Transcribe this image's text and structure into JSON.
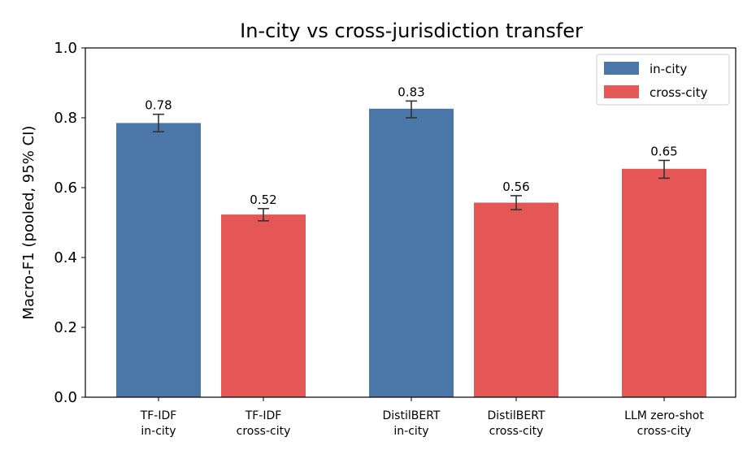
{
  "chart_data": {
    "type": "bar",
    "title": "In-city vs cross-jurisdiction transfer",
    "xlabel": "",
    "ylabel": "Macro-F1 (pooled, 95% CI)",
    "ylim": [
      0,
      1.0
    ],
    "yticks": [
      "0.0",
      "0.2",
      "0.4",
      "0.6",
      "0.8",
      "1.0"
    ],
    "grid": false,
    "legend_position": "top-right",
    "legend": [
      {
        "label": "in-city",
        "color": "#4a77a8"
      },
      {
        "label": "cross-city",
        "color": "#e55757"
      }
    ],
    "bars": [
      {
        "label_lines": [
          "TF-IDF",
          "in-city"
        ],
        "group": "in-city",
        "value": 0.785,
        "ci_low": 0.76,
        "ci_high": 0.81,
        "data_label": "0.78"
      },
      {
        "label_lines": [
          "TF-IDF",
          "cross-city"
        ],
        "group": "cross-city",
        "value": 0.523,
        "ci_low": 0.505,
        "ci_high": 0.54,
        "data_label": "0.52"
      },
      {
        "label_lines": [
          "DistilBERT",
          "in-city"
        ],
        "group": "in-city",
        "value": 0.826,
        "ci_low": 0.8,
        "ci_high": 0.848,
        "data_label": "0.83"
      },
      {
        "label_lines": [
          "DistilBERT",
          "cross-city"
        ],
        "group": "cross-city",
        "value": 0.557,
        "ci_low": 0.537,
        "ci_high": 0.577,
        "data_label": "0.56"
      },
      {
        "label_lines": [
          "LLM zero-shot",
          "cross-city"
        ],
        "group": "cross-city",
        "value": 0.654,
        "ci_low": 0.627,
        "ci_high": 0.678,
        "data_label": "0.65"
      }
    ]
  }
}
